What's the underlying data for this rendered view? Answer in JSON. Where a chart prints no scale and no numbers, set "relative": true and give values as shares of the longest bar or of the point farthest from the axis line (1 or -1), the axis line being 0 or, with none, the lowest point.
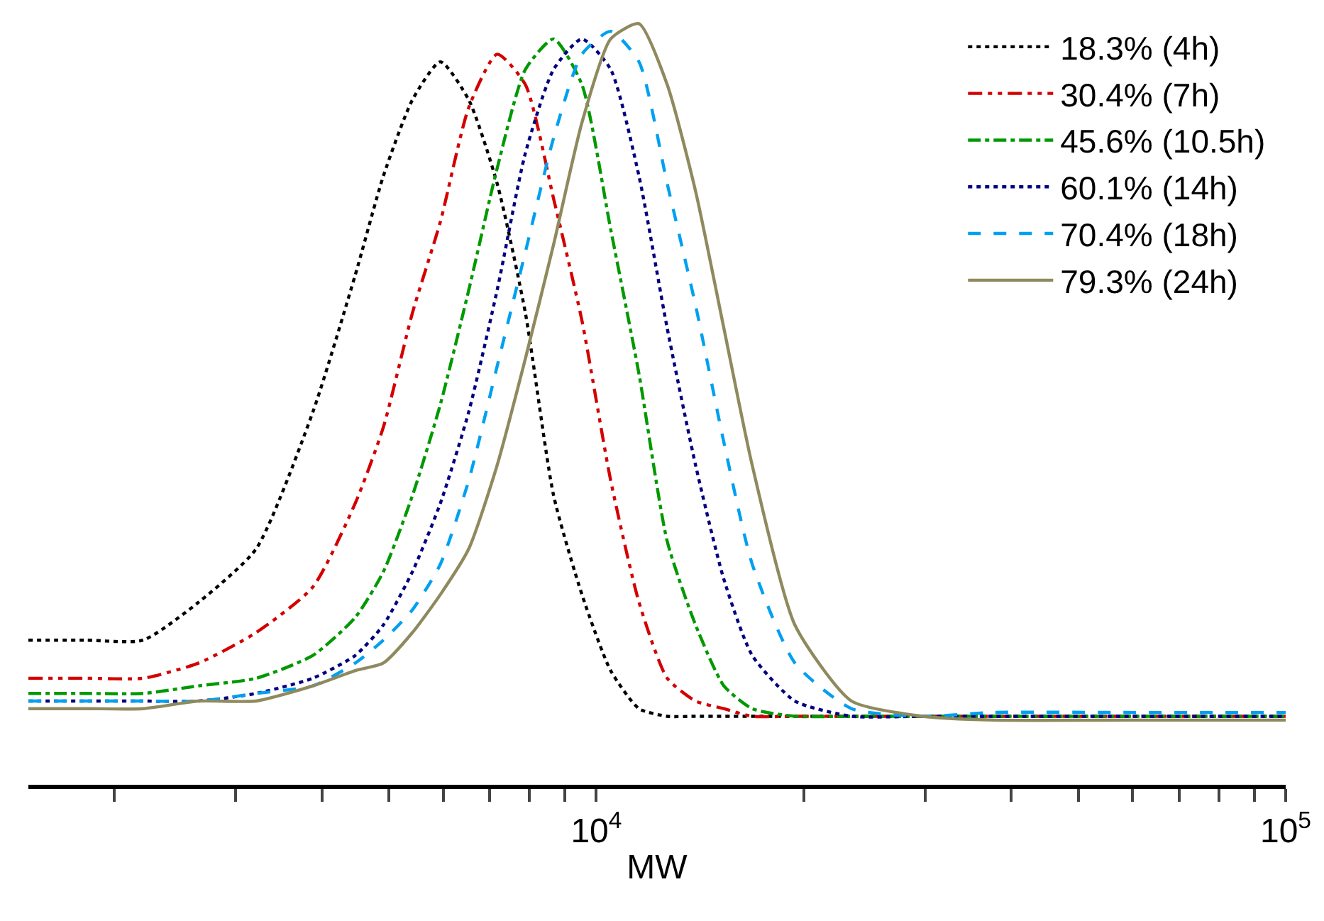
{
  "chart_data": {
    "type": "line",
    "xlabel": "MW",
    "log": "x",
    "relative": true,
    "legend": "top right",
    "xlim": [
      1500,
      100000
    ],
    "xticks": [
      {
        "value": 2000,
        "label": null
      },
      {
        "value": 3000,
        "label": null
      },
      {
        "value": 4000,
        "label": null
      },
      {
        "value": 5000,
        "label": null
      },
      {
        "value": 6000,
        "label": null
      },
      {
        "value": 7000,
        "label": null
      },
      {
        "value": 8000,
        "label": null
      },
      {
        "value": 9000,
        "label": null
      },
      {
        "value": 10000,
        "label": "10$^{4}$"
      },
      {
        "value": 20000,
        "label": null
      },
      {
        "value": 30000,
        "label": null
      },
      {
        "value": 40000,
        "label": null
      },
      {
        "value": 50000,
        "label": null
      },
      {
        "value": 60000,
        "label": null
      },
      {
        "value": 70000,
        "label": null
      },
      {
        "value": 80000,
        "label": null
      },
      {
        "value": 90000,
        "label": null
      },
      {
        "value": 100000,
        "label": "10$^{5}$"
      }
    ],
    "x": [
      1500,
      1820,
      2200,
      2650,
      3210,
      3880,
      4470,
      4910,
      5410,
      5940,
      6530,
      7180,
      7890,
      8670,
      9530,
      10490,
      11530,
      12670,
      13930,
      15310,
      16830,
      19410,
      23450,
      29720,
      37670,
      60530,
      100000
    ],
    "series": [
      {
        "name": "18.3% (4h)",
        "color": "#000000",
        "line_style": "dotted",
        "values": [
          0.19,
          0.19,
          0.19,
          0.24,
          0.31,
          0.49,
          0.67,
          0.8,
          0.9,
          0.95,
          0.9,
          0.79,
          0.62,
          0.38,
          0.25,
          0.15,
          0.1,
          0.09,
          0.09,
          0.09,
          0.09,
          0.09,
          0.09,
          0.09,
          0.09,
          0.09,
          0.09
        ]
      },
      {
        "name": "30.4% (7h)",
        "color": "#d40000",
        "line_style": "dashdotdot",
        "values": [
          0.14,
          0.14,
          0.14,
          0.16,
          0.2,
          0.26,
          0.37,
          0.47,
          0.62,
          0.74,
          0.89,
          0.96,
          0.92,
          0.77,
          0.61,
          0.4,
          0.24,
          0.14,
          0.11,
          0.1,
          0.09,
          0.09,
          0.09,
          0.09,
          0.09,
          0.09,
          0.09
        ]
      },
      {
        "name": "45.6% (10.5h)",
        "color": "#009900",
        "line_style": "dashdot",
        "values": [
          0.12,
          0.12,
          0.12,
          0.13,
          0.14,
          0.17,
          0.22,
          0.28,
          0.38,
          0.5,
          0.65,
          0.81,
          0.94,
          0.98,
          0.92,
          0.73,
          0.54,
          0.32,
          0.21,
          0.13,
          0.1,
          0.09,
          0.09,
          0.09,
          0.09,
          0.09,
          0.09
        ]
      },
      {
        "name": "60.1% (14h)",
        "color": "#000080",
        "line_style": "dotted",
        "values": [
          0.11,
          0.11,
          0.11,
          0.11,
          0.12,
          0.14,
          0.17,
          0.21,
          0.28,
          0.37,
          0.49,
          0.65,
          0.83,
          0.94,
          0.98,
          0.94,
          0.8,
          0.6,
          0.42,
          0.27,
          0.17,
          0.11,
          0.09,
          0.09,
          0.09,
          0.09,
          0.09
        ]
      },
      {
        "name": "70.4% (18h)",
        "color": "#00a0f0",
        "line_style": "dashed",
        "values": [
          0.11,
          0.11,
          0.11,
          0.11,
          0.12,
          0.13,
          0.16,
          0.19,
          0.23,
          0.29,
          0.4,
          0.55,
          0.7,
          0.85,
          0.96,
          0.99,
          0.95,
          0.79,
          0.63,
          0.45,
          0.29,
          0.16,
          0.1,
          0.09,
          0.095,
          0.095,
          0.095
        ]
      },
      {
        "name": "79.3% (24h)",
        "color": "#8f8a5e",
        "line_style": "solid",
        "values": [
          0.1,
          0.1,
          0.1,
          0.11,
          0.11,
          0.13,
          0.15,
          0.16,
          0.2,
          0.25,
          0.31,
          0.42,
          0.56,
          0.71,
          0.87,
          0.98,
          1.0,
          0.92,
          0.78,
          0.6,
          0.42,
          0.21,
          0.11,
          0.09,
          0.085,
          0.085,
          0.085
        ]
      }
    ]
  }
}
